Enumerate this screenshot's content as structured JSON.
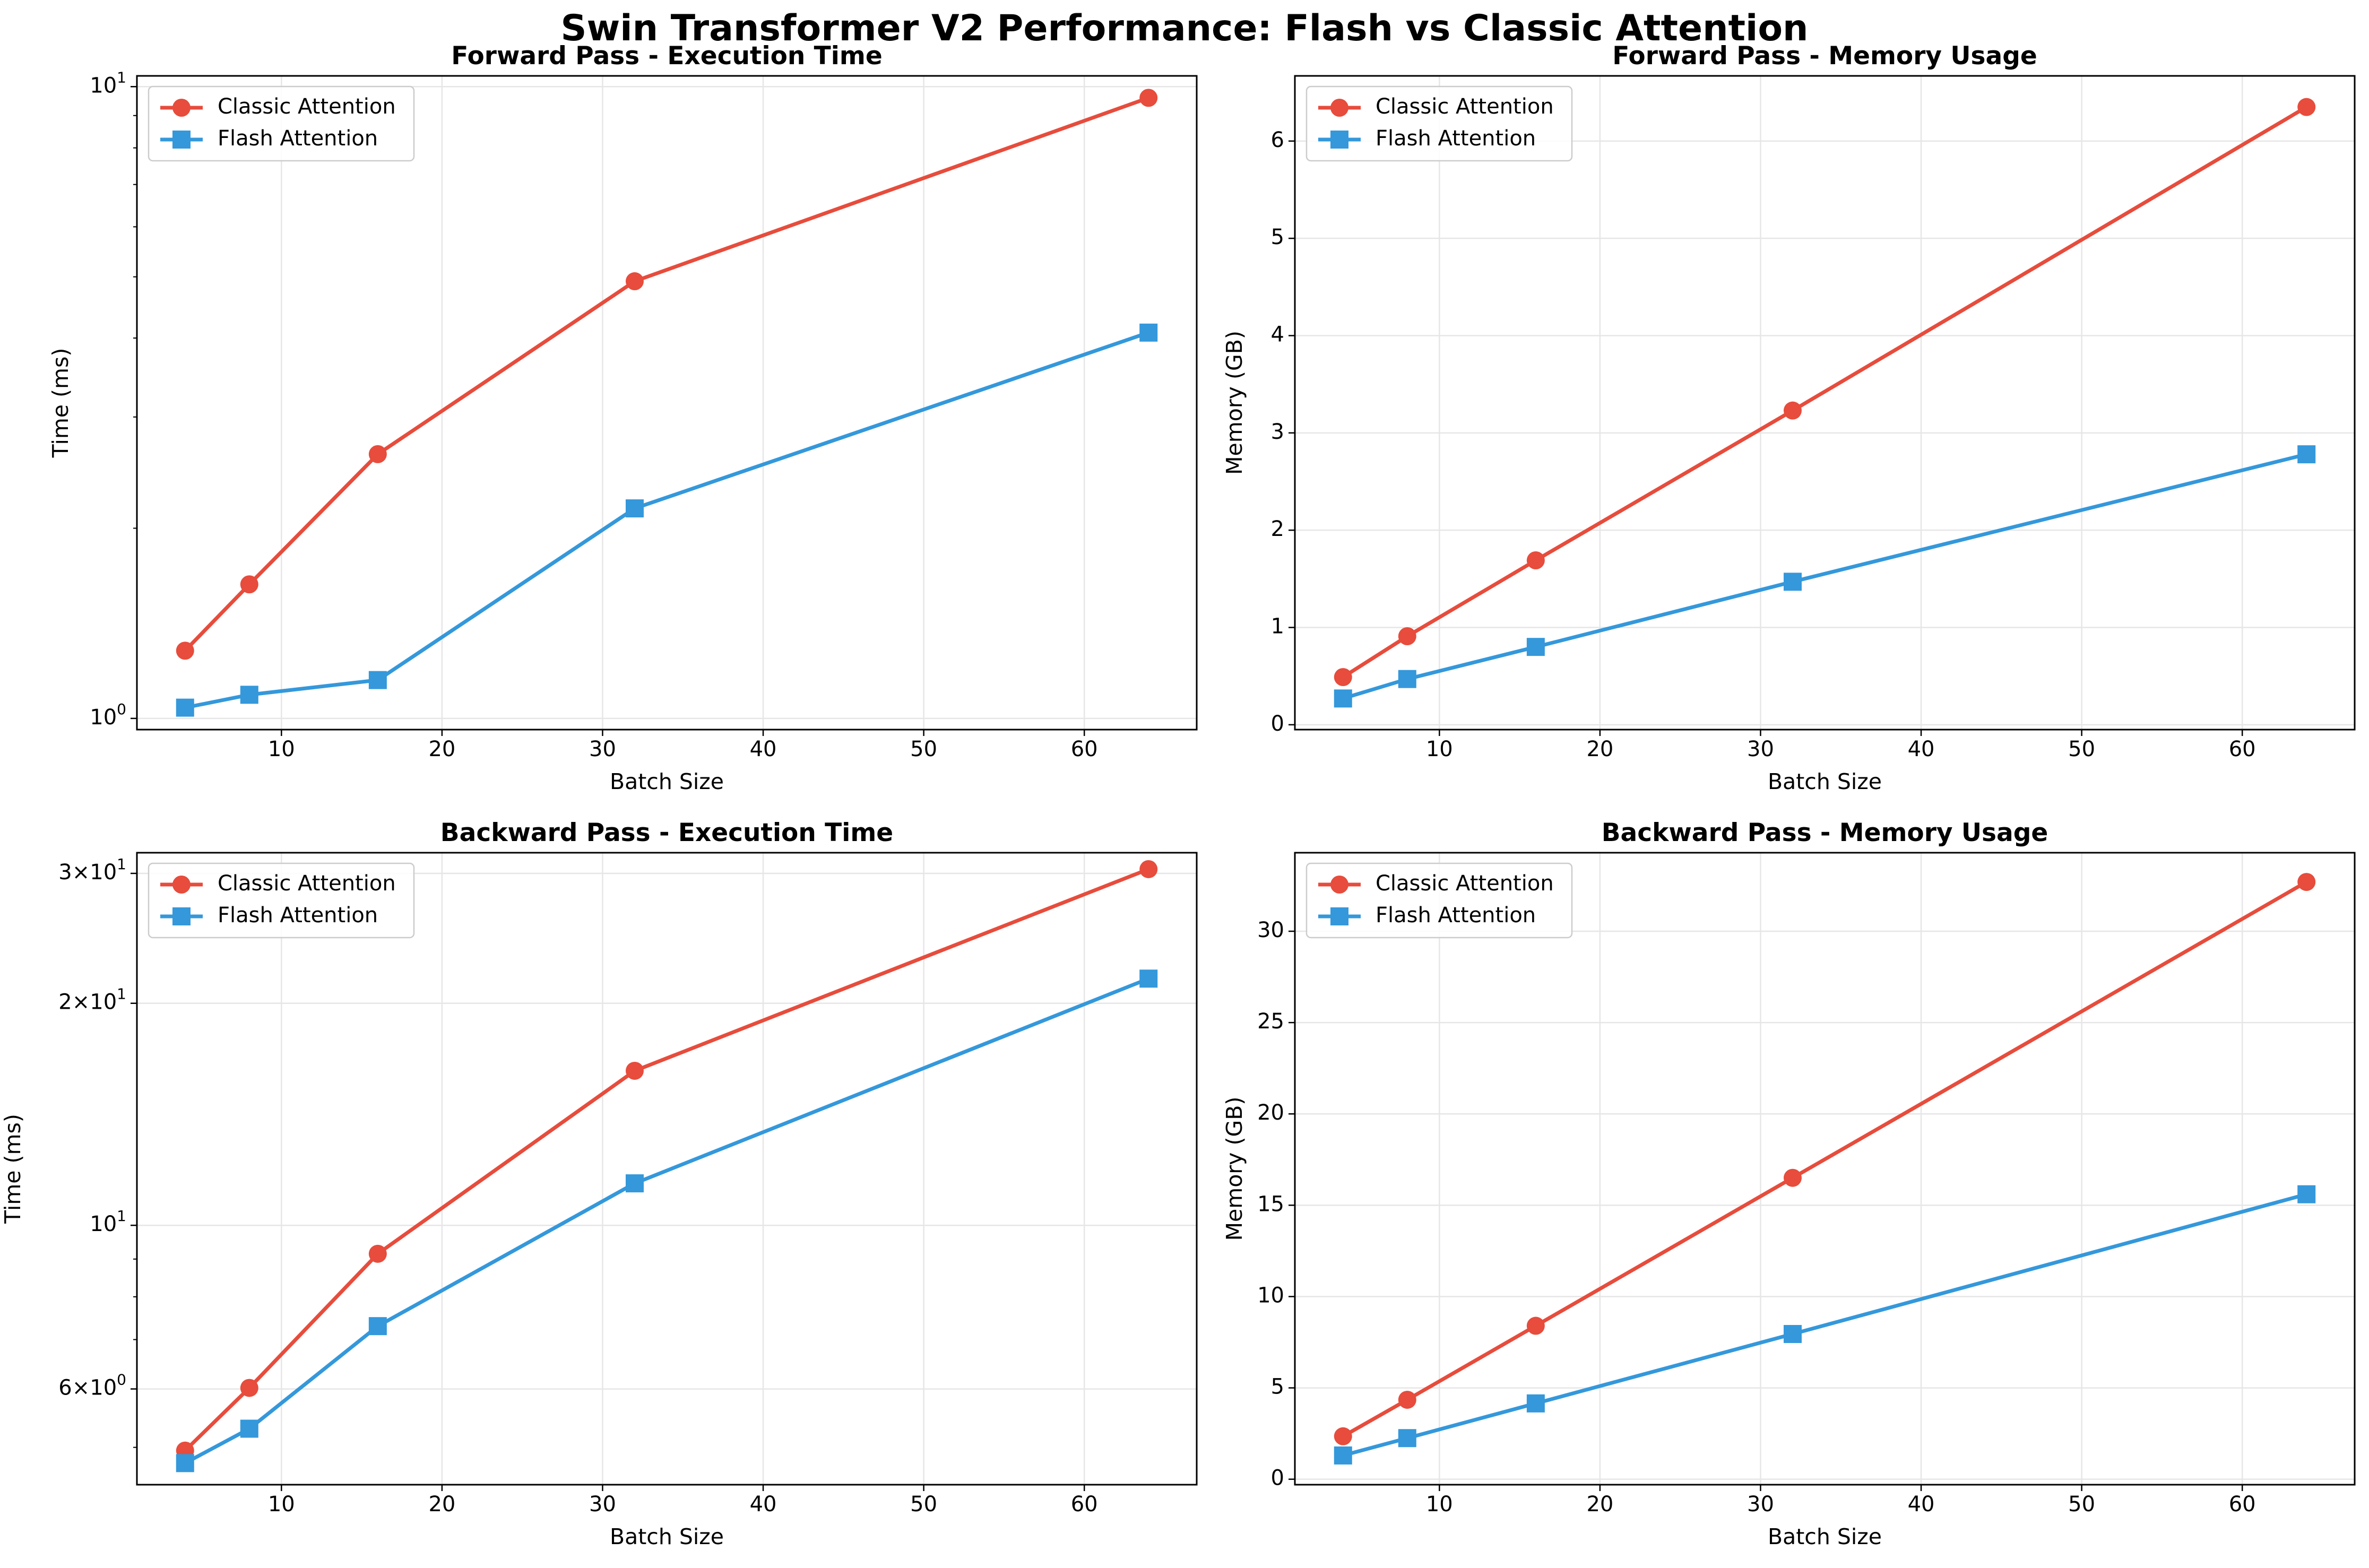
{
  "figure": {
    "title": "Swin Transformer V2 Performance: Flash vs Classic Attention"
  },
  "colors": {
    "classic": "#e74c3c",
    "flash": "#3498db",
    "grid": "#e6e6e6",
    "axis": "#000000"
  },
  "chart_data": [
    {
      "type": "line",
      "title": "Forward Pass - Execution Time",
      "xlabel": "Batch Size",
      "ylabel": "Time (ms)",
      "yscale": "log",
      "xlim": [
        1.0,
        67.0
      ],
      "ylim": [
        0.96,
        10.4
      ],
      "xticks": [
        10,
        20,
        30,
        40,
        50,
        60
      ],
      "yticks": [
        {
          "value": 1,
          "label": "10^0"
        },
        {
          "value": 10,
          "label": "10^1"
        }
      ],
      "yminor": [
        2,
        3,
        4,
        5,
        6,
        7,
        8,
        9
      ],
      "grid": true,
      "legend": "upper left",
      "x": [
        4,
        8,
        16,
        32,
        64
      ],
      "series": [
        {
          "name": "Classic Attention",
          "marker": "circle",
          "values": [
            1.28,
            1.63,
            2.62,
            4.92,
            9.6
          ]
        },
        {
          "name": "Flash Attention",
          "marker": "square",
          "values": [
            1.04,
            1.09,
            1.15,
            2.15,
            4.08
          ]
        }
      ]
    },
    {
      "type": "line",
      "title": "Forward Pass - Memory Usage",
      "xlabel": "Batch Size",
      "ylabel": "Memory (GB)",
      "yscale": "linear",
      "xlim": [
        1.0,
        67.0
      ],
      "ylim": [
        -0.05,
        6.67
      ],
      "xticks": [
        10,
        20,
        30,
        40,
        50,
        60
      ],
      "yticks": [
        {
          "value": 0,
          "label": "0"
        },
        {
          "value": 1,
          "label": "1"
        },
        {
          "value": 2,
          "label": "2"
        },
        {
          "value": 3,
          "label": "3"
        },
        {
          "value": 4,
          "label": "4"
        },
        {
          "value": 5,
          "label": "5"
        },
        {
          "value": 6,
          "label": "6"
        }
      ],
      "grid": true,
      "legend": "upper left",
      "x": [
        4,
        8,
        16,
        32,
        64
      ],
      "series": [
        {
          "name": "Classic Attention",
          "marker": "circle",
          "values": [
            0.49,
            0.91,
            1.69,
            3.23,
            6.35
          ]
        },
        {
          "name": "Flash Attention",
          "marker": "square",
          "values": [
            0.27,
            0.47,
            0.8,
            1.47,
            2.78
          ]
        }
      ]
    },
    {
      "type": "line",
      "title": "Backward Pass - Execution Time",
      "xlabel": "Batch Size",
      "ylabel": "Time (ms)",
      "yscale": "log",
      "xlim": [
        1.0,
        67.0
      ],
      "ylim": [
        4.45,
        32.0
      ],
      "xticks": [
        10,
        20,
        30,
        40,
        50,
        60
      ],
      "yticks": [
        {
          "value": 6,
          "label": "6×10^0"
        },
        {
          "value": 10,
          "label": "10^1"
        },
        {
          "value": 20,
          "label": "2×10^1"
        },
        {
          "value": 30,
          "label": "3×10^1"
        }
      ],
      "yminor": [
        5,
        7,
        8,
        9
      ],
      "grid": true,
      "legend": "upper left",
      "x": [
        4,
        8,
        16,
        32,
        64
      ],
      "series": [
        {
          "name": "Classic Attention",
          "marker": "circle",
          "values": [
            4.95,
            6.02,
            9.15,
            16.2,
            30.4
          ]
        },
        {
          "name": "Flash Attention",
          "marker": "square",
          "values": [
            4.76,
            5.3,
            7.3,
            11.4,
            21.6
          ]
        }
      ]
    },
    {
      "type": "line",
      "title": "Backward Pass - Memory Usage",
      "xlabel": "Batch Size",
      "ylabel": "Memory (GB)",
      "yscale": "linear",
      "xlim": [
        1.0,
        67.0
      ],
      "ylim": [
        -0.3,
        34.3
      ],
      "xticks": [
        10,
        20,
        30,
        40,
        50,
        60
      ],
      "yticks": [
        {
          "value": 0,
          "label": "0"
        },
        {
          "value": 5,
          "label": "5"
        },
        {
          "value": 10,
          "label": "10"
        },
        {
          "value": 15,
          "label": "15"
        },
        {
          "value": 20,
          "label": "20"
        },
        {
          "value": 25,
          "label": "25"
        },
        {
          "value": 30,
          "label": "30"
        }
      ],
      "grid": true,
      "legend": "upper left",
      "x": [
        4,
        8,
        16,
        32,
        64
      ],
      "series": [
        {
          "name": "Classic Attention",
          "marker": "circle",
          "values": [
            2.35,
            4.35,
            8.4,
            16.5,
            32.7
          ]
        },
        {
          "name": "Flash Attention",
          "marker": "square",
          "values": [
            1.3,
            2.25,
            4.15,
            7.95,
            15.6
          ]
        }
      ]
    }
  ]
}
